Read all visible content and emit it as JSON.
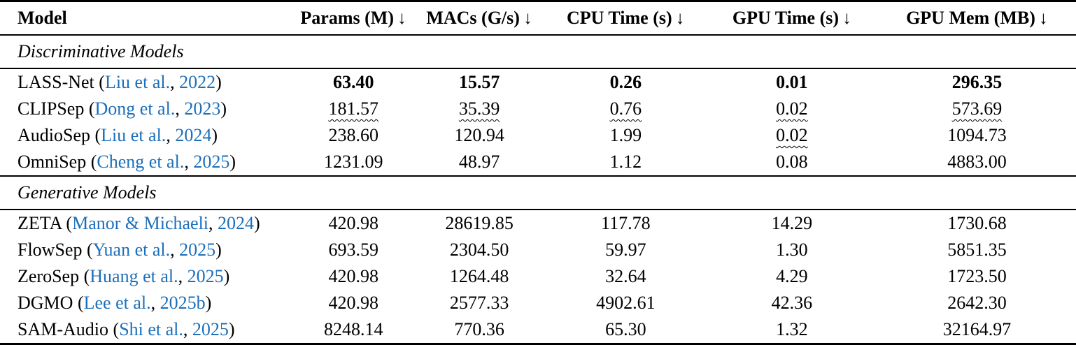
{
  "colors": {
    "text": "#000000",
    "citation_blue": "#1c6fba",
    "rule": "#000000",
    "background": "#ffffff"
  },
  "table": {
    "columns": [
      {
        "label": "Model",
        "arrow": ""
      },
      {
        "label": "Params (M)",
        "arrow": "↓"
      },
      {
        "label": "MACs (G/s)",
        "arrow": "↓"
      },
      {
        "label": "CPU Time (s)",
        "arrow": "↓"
      },
      {
        "label": "GPU Time (s)",
        "arrow": "↓"
      },
      {
        "label": "GPU Mem (MB)",
        "arrow": "↓"
      }
    ],
    "punct": {
      "open": " (",
      "sep": ", ",
      "close": ")"
    },
    "sections": [
      {
        "title": "Discriminative Models",
        "rows": [
          {
            "model": "LASS-Net",
            "cite_authors": "Liu et al.",
            "cite_year": "2022",
            "values": [
              "63.40",
              "15.57",
              "0.26",
              "0.01",
              "296.35"
            ],
            "styles": [
              "bold",
              "bold",
              "bold",
              "bold",
              "bold"
            ]
          },
          {
            "model": "CLIPSep",
            "cite_authors": "Dong et al.",
            "cite_year": "2023",
            "values": [
              "181.57",
              "35.39",
              "0.76",
              "0.02",
              "573.69"
            ],
            "styles": [
              "wavy",
              "wavy",
              "wavy",
              "wavy",
              "wavy"
            ]
          },
          {
            "model": "AudioSep",
            "cite_authors": "Liu et al.",
            "cite_year": "2024",
            "values": [
              "238.60",
              "120.94",
              "1.99",
              "0.02",
              "1094.73"
            ],
            "styles": [
              "plain",
              "plain",
              "plain",
              "wavy",
              "plain"
            ]
          },
          {
            "model": "OmniSep",
            "cite_authors": "Cheng et al.",
            "cite_year": "2025",
            "values": [
              "1231.09",
              "48.97",
              "1.12",
              "0.08",
              "4883.00"
            ],
            "styles": [
              "plain",
              "plain",
              "plain",
              "plain",
              "plain"
            ]
          }
        ]
      },
      {
        "title": "Generative Models",
        "rows": [
          {
            "model": "ZETA",
            "cite_authors": "Manor & Michaeli",
            "cite_year": "2024",
            "values": [
              "420.98",
              "28619.85",
              "117.78",
              "14.29",
              "1730.68"
            ],
            "styles": [
              "plain",
              "plain",
              "plain",
              "plain",
              "plain"
            ]
          },
          {
            "model": "FlowSep",
            "cite_authors": "Yuan et al.",
            "cite_year": "2025",
            "values": [
              "693.59",
              "2304.50",
              "59.97",
              "1.30",
              "5851.35"
            ],
            "styles": [
              "plain",
              "plain",
              "plain",
              "plain",
              "plain"
            ]
          },
          {
            "model": "ZeroSep",
            "cite_authors": "Huang et al.",
            "cite_year": "2025",
            "values": [
              "420.98",
              "1264.48",
              "32.64",
              "4.29",
              "1723.50"
            ],
            "styles": [
              "plain",
              "plain",
              "plain",
              "plain",
              "plain"
            ]
          },
          {
            "model": "DGMO",
            "cite_authors": "Lee et al.",
            "cite_year": "2025b",
            "values": [
              "420.98",
              "2577.33",
              "4902.61",
              "42.36",
              "2642.30"
            ],
            "styles": [
              "plain",
              "plain",
              "plain",
              "plain",
              "plain"
            ]
          },
          {
            "model": "SAM-Audio",
            "cite_authors": "Shi et al.",
            "cite_year": "2025",
            "values": [
              "8248.14",
              "770.36",
              "65.30",
              "1.32",
              "32164.97"
            ],
            "styles": [
              "plain",
              "plain",
              "plain",
              "plain",
              "plain"
            ]
          }
        ]
      }
    ]
  }
}
